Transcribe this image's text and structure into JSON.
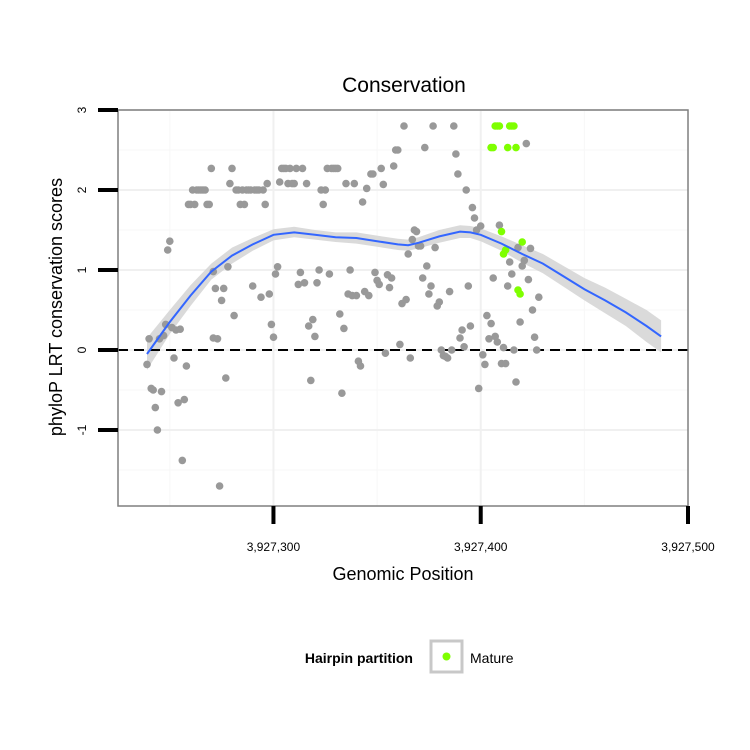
{
  "chart_data": {
    "type": "scatter",
    "title": "Conservation",
    "xlabel": "Genomic Position",
    "ylabel": "phyloP LRT conservation scores",
    "xlim": [
      3927225,
      3927500
    ],
    "ylim": [
      -1.95,
      3.0
    ],
    "x_ticks": [
      {
        "value": 3927300,
        "label": "3,927,300"
      },
      {
        "value": 3927400,
        "label": "3,927,400"
      },
      {
        "value": 3927500,
        "label": "3,927,500"
      }
    ],
    "y_ticks": [
      {
        "value": -1,
        "label": "-1"
      },
      {
        "value": 0,
        "label": "0"
      },
      {
        "value": 1,
        "label": "1"
      },
      {
        "value": 2,
        "label": "2"
      },
      {
        "value": 3,
        "label": "3"
      }
    ],
    "grid": true,
    "reference_line": {
      "y": 0,
      "style": "dashed"
    },
    "legend": {
      "title": "Hairpin partition",
      "position": "bottom",
      "entries": [
        {
          "label": "Mature",
          "color": "#7FFF00"
        }
      ]
    },
    "colors": {
      "background_points": "#999999",
      "mature": "#7FFF00",
      "smooth_line": "#3366FF",
      "confidence_band": "#d3d3d3"
    },
    "series": [
      {
        "color": "#999999",
        "points": [
          [
            3927239,
            -0.18
          ],
          [
            3927240,
            0.14
          ],
          [
            3927241,
            -0.48
          ],
          [
            3927242,
            -0.5
          ],
          [
            3927243,
            -0.72
          ],
          [
            3927244,
            -1.0
          ],
          [
            3927245,
            0.14
          ],
          [
            3927246,
            -0.52
          ],
          [
            3927247,
            0.18
          ],
          [
            3927248,
            0.32
          ],
          [
            3927249,
            1.25
          ],
          [
            3927250,
            1.36
          ],
          [
            3927251,
            0.28
          ],
          [
            3927252,
            -0.1
          ],
          [
            3927253,
            0.25
          ],
          [
            3927254,
            -0.66
          ],
          [
            3927255,
            0.26
          ],
          [
            3927256,
            -1.38
          ],
          [
            3927257,
            -0.62
          ],
          [
            3927258,
            -0.2
          ],
          [
            3927259,
            1.82
          ],
          [
            3927260,
            1.82
          ],
          [
            3927261,
            2.0
          ],
          [
            3927262,
            1.82
          ],
          [
            3927263,
            2.0
          ],
          [
            3927264,
            2.0
          ],
          [
            3927265,
            2.0
          ],
          [
            3927266,
            2.0
          ],
          [
            3927267,
            2.0
          ],
          [
            3927268,
            1.82
          ],
          [
            3927269,
            1.82
          ],
          [
            3927270,
            2.27
          ],
          [
            3927271,
            0.98
          ],
          [
            3927271,
            0.15
          ],
          [
            3927272,
            0.77
          ],
          [
            3927273,
            0.14
          ],
          [
            3927274,
            -1.7
          ],
          [
            3927275,
            0.62
          ],
          [
            3927276,
            0.77
          ],
          [
            3927277,
            -0.35
          ],
          [
            3927278,
            1.04
          ],
          [
            3927279,
            2.08
          ],
          [
            3927280,
            2.27
          ],
          [
            3927281,
            0.43
          ],
          [
            3927282,
            2.0
          ],
          [
            3927283,
            2.0
          ],
          [
            3927284,
            1.82
          ],
          [
            3927285,
            2.0
          ],
          [
            3927286,
            1.82
          ],
          [
            3927287,
            2.0
          ],
          [
            3927288,
            2.0
          ],
          [
            3927289,
            2.0
          ],
          [
            3927290,
            0.8
          ],
          [
            3927291,
            2.0
          ],
          [
            3927292,
            2.0
          ],
          [
            3927293,
            2.0
          ],
          [
            3927294,
            0.66
          ],
          [
            3927295,
            2.0
          ],
          [
            3927296,
            1.82
          ],
          [
            3927297,
            2.08
          ],
          [
            3927298,
            0.7
          ],
          [
            3927299,
            0.32
          ],
          [
            3927300,
            0.16
          ],
          [
            3927301,
            0.95
          ],
          [
            3927302,
            1.04
          ],
          [
            3927303,
            2.1
          ],
          [
            3927304,
            2.27
          ],
          [
            3927305,
            2.27
          ],
          [
            3927306,
            2.27
          ],
          [
            3927307,
            2.08
          ],
          [
            3927308,
            2.27
          ],
          [
            3927309,
            2.08
          ],
          [
            3927310,
            2.08
          ],
          [
            3927311,
            2.27
          ],
          [
            3927312,
            0.82
          ],
          [
            3927313,
            0.97
          ],
          [
            3927314,
            2.27
          ],
          [
            3927315,
            0.84
          ],
          [
            3927316,
            2.08
          ],
          [
            3927317,
            0.3
          ],
          [
            3927318,
            -0.38
          ],
          [
            3927319,
            0.38
          ],
          [
            3927320,
            0.17
          ],
          [
            3927321,
            0.84
          ],
          [
            3927322,
            1.0
          ],
          [
            3927323,
            2.0
          ],
          [
            3927324,
            1.82
          ],
          [
            3927325,
            2.0
          ],
          [
            3927326,
            2.27
          ],
          [
            3927327,
            0.95
          ],
          [
            3927328,
            2.27
          ],
          [
            3927329,
            2.27
          ],
          [
            3927330,
            2.27
          ],
          [
            3927331,
            2.27
          ],
          [
            3927332,
            0.45
          ],
          [
            3927333,
            -0.54
          ],
          [
            3927334,
            0.27
          ],
          [
            3927335,
            2.08
          ],
          [
            3927336,
            0.7
          ],
          [
            3927337,
            1.0
          ],
          [
            3927338,
            0.68
          ],
          [
            3927339,
            2.08
          ],
          [
            3927340,
            0.68
          ],
          [
            3927341,
            -0.14
          ],
          [
            3927342,
            -0.2
          ],
          [
            3927343,
            1.85
          ],
          [
            3927344,
            0.73
          ],
          [
            3927345,
            2.02
          ],
          [
            3927346,
            0.68
          ],
          [
            3927347,
            2.2
          ],
          [
            3927348,
            2.2
          ],
          [
            3927349,
            0.97
          ],
          [
            3927350,
            0.87
          ],
          [
            3927351,
            0.82
          ],
          [
            3927352,
            2.27
          ],
          [
            3927353,
            2.07
          ],
          [
            3927354,
            -0.04
          ],
          [
            3927355,
            0.94
          ],
          [
            3927356,
            0.78
          ],
          [
            3927357,
            0.9
          ],
          [
            3927358,
            2.3
          ],
          [
            3927359,
            2.5
          ],
          [
            3927360,
            2.5
          ],
          [
            3927361,
            0.07
          ],
          [
            3927362,
            0.58
          ],
          [
            3927363,
            2.8
          ],
          [
            3927364,
            0.63
          ],
          [
            3927365,
            1.2
          ],
          [
            3927366,
            -0.1
          ],
          [
            3927367,
            1.38
          ],
          [
            3927368,
            1.5
          ],
          [
            3927369,
            1.48
          ],
          [
            3927370,
            1.3
          ],
          [
            3927371,
            1.3
          ],
          [
            3927372,
            0.9
          ],
          [
            3927373,
            2.53
          ],
          [
            3927374,
            1.05
          ],
          [
            3927375,
            0.7
          ],
          [
            3927376,
            0.8
          ],
          [
            3927377,
            2.8
          ],
          [
            3927378,
            1.28
          ],
          [
            3927379,
            0.55
          ],
          [
            3927380,
            0.6
          ],
          [
            3927381,
            0.0
          ],
          [
            3927382,
            -0.07
          ],
          [
            3927383,
            -0.08
          ],
          [
            3927384,
            -0.1
          ],
          [
            3927385,
            0.73
          ],
          [
            3927386,
            0.0
          ],
          [
            3927387,
            2.8
          ],
          [
            3927388,
            2.45
          ],
          [
            3927389,
            2.2
          ],
          [
            3927390,
            0.15
          ],
          [
            3927391,
            0.25
          ],
          [
            3927392,
            0.04
          ],
          [
            3927393,
            2.0
          ],
          [
            3927394,
            0.8
          ],
          [
            3927395,
            0.3
          ],
          [
            3927396,
            1.78
          ],
          [
            3927397,
            1.65
          ],
          [
            3927398,
            1.5
          ],
          [
            3927399,
            -0.48
          ],
          [
            3927400,
            1.55
          ],
          [
            3927401,
            -0.06
          ],
          [
            3927402,
            -0.18
          ],
          [
            3927403,
            0.43
          ],
          [
            3927404,
            0.14
          ],
          [
            3927405,
            0.33
          ],
          [
            3927406,
            0.9
          ],
          [
            3927407,
            0.17
          ],
          [
            3927408,
            0.1
          ],
          [
            3927409,
            1.56
          ],
          [
            3927410,
            -0.17
          ],
          [
            3927411,
            0.03
          ],
          [
            3927412,
            -0.17
          ],
          [
            3927413,
            0.8
          ],
          [
            3927414,
            1.1
          ],
          [
            3927415,
            0.95
          ],
          [
            3927416,
            0.0
          ],
          [
            3927417,
            -0.4
          ],
          [
            3927418,
            1.28
          ],
          [
            3927419,
            0.35
          ],
          [
            3927420,
            1.05
          ],
          [
            3927421,
            1.12
          ],
          [
            3927422,
            2.58
          ],
          [
            3927423,
            0.88
          ],
          [
            3927424,
            1.27
          ],
          [
            3927425,
            0.5
          ],
          [
            3927426,
            0.16
          ],
          [
            3927427,
            0.0
          ],
          [
            3927428,
            0.66
          ]
        ]
      },
      {
        "name": "Mature",
        "color": "#7FFF00",
        "points": [
          [
            3927405,
            2.53
          ],
          [
            3927406,
            2.53
          ],
          [
            3927407,
            2.8
          ],
          [
            3927408,
            2.8
          ],
          [
            3927409,
            2.8
          ],
          [
            3927410,
            1.48
          ],
          [
            3927411,
            1.2
          ],
          [
            3927412,
            1.25
          ],
          [
            3927413,
            2.53
          ],
          [
            3927414,
            2.8
          ],
          [
            3927415,
            2.8
          ],
          [
            3927416,
            2.8
          ],
          [
            3927417,
            2.53
          ],
          [
            3927418,
            0.75
          ],
          [
            3927419,
            0.7
          ],
          [
            3927420,
            1.35
          ]
        ]
      }
    ],
    "smooth": {
      "x": [
        3927239,
        3927250,
        3927260,
        3927270,
        3927280,
        3927290,
        3927300,
        3927310,
        3927320,
        3927330,
        3927340,
        3927350,
        3927360,
        3927365,
        3927370,
        3927380,
        3927390,
        3927395,
        3927400,
        3927410,
        3927420,
        3927430,
        3927440,
        3927450,
        3927460,
        3927470,
        3927480,
        3927487
      ],
      "y": [
        -0.05,
        0.35,
        0.68,
        0.98,
        1.18,
        1.32,
        1.44,
        1.47,
        1.44,
        1.41,
        1.4,
        1.36,
        1.32,
        1.31,
        1.34,
        1.42,
        1.48,
        1.47,
        1.44,
        1.33,
        1.2,
        1.08,
        0.92,
        0.76,
        0.62,
        0.47,
        0.3,
        0.17
      ],
      "lower": [
        -0.25,
        0.2,
        0.55,
        0.88,
        1.08,
        1.24,
        1.37,
        1.41,
        1.38,
        1.35,
        1.33,
        1.29,
        1.25,
        1.24,
        1.27,
        1.34,
        1.4,
        1.4,
        1.36,
        1.24,
        1.09,
        0.96,
        0.79,
        0.62,
        0.46,
        0.3,
        0.1,
        -0.03
      ],
      "upper": [
        0.15,
        0.5,
        0.81,
        1.08,
        1.28,
        1.4,
        1.51,
        1.54,
        1.5,
        1.47,
        1.47,
        1.43,
        1.39,
        1.38,
        1.41,
        1.5,
        1.56,
        1.55,
        1.52,
        1.42,
        1.31,
        1.2,
        1.05,
        0.9,
        0.78,
        0.64,
        0.5,
        0.37
      ]
    }
  }
}
